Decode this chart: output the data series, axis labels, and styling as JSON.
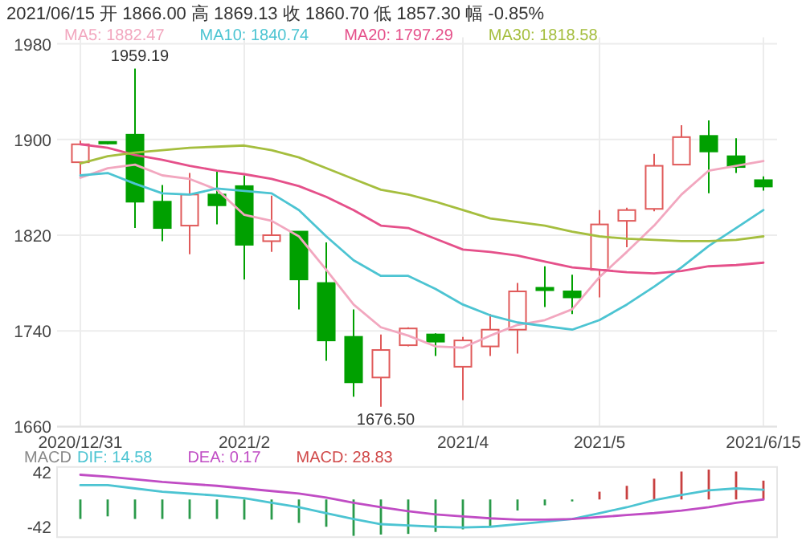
{
  "chart_data": [
    {
      "type": "candlestick",
      "title": "2021/06/15  开 1866.00  高 1869.13  收 1860.70  低 1857.30  幅 -0.85%",
      "categories": [
        "2020/12/31",
        null,
        null,
        null,
        null,
        null,
        "2021/2",
        null,
        null,
        null,
        null,
        null,
        null,
        null,
        "2021/4",
        null,
        null,
        null,
        null,
        "2021/5",
        null,
        null,
        null,
        null,
        null,
        "2021/6/15"
      ],
      "ohlc": [
        [
          1881,
          1899,
          1868,
          1896
        ],
        [
          1898,
          1898,
          1896,
          1897
        ],
        [
          1904,
          1959.19,
          1826,
          1848
        ],
        [
          1848,
          1862,
          1815,
          1826
        ],
        [
          1828,
          1872,
          1804,
          1854
        ],
        [
          1854,
          1873,
          1829,
          1845
        ],
        [
          1861,
          1870,
          1783,
          1812
        ],
        [
          1815,
          1853,
          1806,
          1820
        ],
        [
          1823,
          1823,
          1758,
          1783
        ],
        [
          1780,
          1814,
          1715,
          1732
        ],
        [
          1735,
          1758,
          1685,
          1697
        ],
        [
          1701,
          1737,
          1676.5,
          1724
        ],
        [
          1728,
          1743,
          1727,
          1742
        ],
        [
          1737,
          1738,
          1719,
          1731
        ],
        [
          1710,
          1735,
          1682,
          1732
        ],
        [
          1727,
          1754,
          1719,
          1741
        ],
        [
          1741,
          1780,
          1721,
          1773
        ],
        [
          1776,
          1794,
          1760,
          1774
        ],
        [
          1773,
          1787,
          1754,
          1768
        ],
        [
          1791,
          1841,
          1768,
          1829
        ],
        [
          1832,
          1843,
          1810,
          1841
        ],
        [
          1842,
          1888,
          1840,
          1878
        ],
        [
          1879,
          1912,
          1879,
          1902
        ],
        [
          1903,
          1916,
          1855,
          1890
        ],
        [
          1886,
          1901,
          1872,
          1877
        ],
        [
          1866,
          1869.13,
          1857.3,
          1860.7
        ]
      ],
      "colors": [
        "#e05a5a",
        "#00a000",
        "#00a000",
        "#00a000",
        "#e05a5a",
        "#00a000",
        "#00a000",
        "#e05a5a",
        "#00a000",
        "#00a000",
        "#00a000",
        "#e05a5a",
        "#e05a5a",
        "#00a000",
        "#e05a5a",
        "#e05a5a",
        "#e05a5a",
        "#00a000",
        "#00a000",
        "#e05a5a",
        "#e05a5a",
        "#e05a5a",
        "#e05a5a",
        "#00a000",
        "#00a000",
        "#00a000"
      ],
      "series": [
        {
          "name": "MA5: 1882.47",
          "type": "line",
          "color": "#f2a7bf",
          "values": [
            1868,
            1876,
            1879,
            1870,
            1867,
            1858,
            1837,
            1832,
            1819,
            1791,
            1762,
            1743,
            1736,
            1727,
            1726,
            1736,
            1745,
            1749,
            1758,
            1785,
            1806,
            1828,
            1854,
            1874,
            1878,
            1882
          ]
        },
        {
          "name": "MA10: 1840.74",
          "type": "line",
          "color": "#4cc4d2",
          "values": [
            1870,
            1872,
            1863,
            1855,
            1854,
            1859,
            1857,
            1855,
            1841,
            1819,
            1799,
            1786,
            1786,
            1775,
            1762,
            1753,
            1747,
            1744,
            1741,
            1749,
            1762,
            1777,
            1793,
            1811,
            1826,
            1841
          ]
        },
        {
          "name": "MA20: 1797.29",
          "type": "line",
          "color": "#e5508a",
          "values": [
            1896,
            1893,
            1887,
            1883,
            1878,
            1874,
            1871,
            1867,
            1861,
            1852,
            1841,
            1828,
            1826,
            1817,
            1808,
            1806,
            1803,
            1798,
            1793,
            1791,
            1789,
            1788,
            1790,
            1794,
            1795,
            1797
          ]
        },
        {
          "name": "MA30: 1818.58",
          "type": "line",
          "color": "#a5be3e",
          "values": [
            1880,
            1886,
            1889,
            1891,
            1893,
            1894,
            1895,
            1891,
            1885,
            1876,
            1867,
            1858,
            1854,
            1848,
            1841,
            1834,
            1831,
            1828,
            1823,
            1819,
            1817,
            1816,
            1815,
            1815,
            1816,
            1819
          ]
        }
      ],
      "ylim": [
        1660,
        1980
      ],
      "yticks": [
        1660,
        1740,
        1820,
        1900,
        1980
      ],
      "grid": true,
      "legend": "top",
      "annotations": [
        {
          "text": "1959.19",
          "y": 1959.19
        },
        {
          "text": "1676.50",
          "y": 1676.5
        }
      ]
    },
    {
      "type": "bar",
      "title": "MACD",
      "tick_labels": "y",
      "legend": "top",
      "categories": [
        null,
        null,
        null,
        null,
        null,
        null,
        null,
        null,
        null,
        null,
        null,
        null,
        null,
        null,
        null,
        null,
        null,
        null,
        null,
        null,
        null,
        null,
        null,
        null,
        null,
        null
      ],
      "series": [
        {
          "name": "DIF: 14.58",
          "type": "line",
          "color": "#4cc4d2",
          "values": [
            22,
            22,
            17,
            12,
            9,
            6,
            2,
            -5,
            -12,
            -21,
            -30,
            -38,
            -40,
            -42,
            -43,
            -42,
            -38,
            -34,
            -30,
            -21,
            -12,
            -1,
            7,
            14,
            17,
            15
          ]
        },
        {
          "name": "DEA: 0.17",
          "type": "line",
          "color": "#c04cc4",
          "values": [
            38,
            35,
            31,
            27,
            24,
            21,
            17,
            13,
            9,
            3,
            -5,
            -12,
            -18,
            -23,
            -26,
            -29,
            -31,
            -31,
            -30,
            -27,
            -24,
            -21,
            -17,
            -12,
            -5,
            0
          ]
        },
        {
          "name": "MACD: 28.83",
          "type": "bar",
          "color": "#d04848",
          "colors": [
            "#2a9a4a",
            "#2a9a4a",
            "#2a9a4a",
            "#2a9a4a",
            "#2a9a4a",
            "#2a9a4a",
            "#2a9a4a",
            "#2a9a4a",
            "#2a9a4a",
            "#2a9a4a",
            "#2a9a4a",
            "#2a9a4a",
            "#2a9a4a",
            "#2a9a4a",
            "#2a9a4a",
            "#2a9a4a",
            "#2a9a4a",
            "#2a9a4a",
            "#2a9a4a",
            "#c84040",
            "#c84040",
            "#c84040",
            "#c84040",
            "#c84040",
            "#c84040",
            "#c84040"
          ],
          "values": [
            -30,
            -26,
            -30,
            -30,
            -30,
            -30,
            -31,
            -31,
            -36,
            -42,
            -56,
            -54,
            -53,
            -50,
            -46,
            -42,
            -17,
            -9,
            -3,
            12,
            21,
            32,
            43,
            46,
            43,
            29
          ]
        }
      ],
      "ylim": [
        -58,
        50
      ],
      "yticks": [
        -42,
        42
      ]
    }
  ]
}
